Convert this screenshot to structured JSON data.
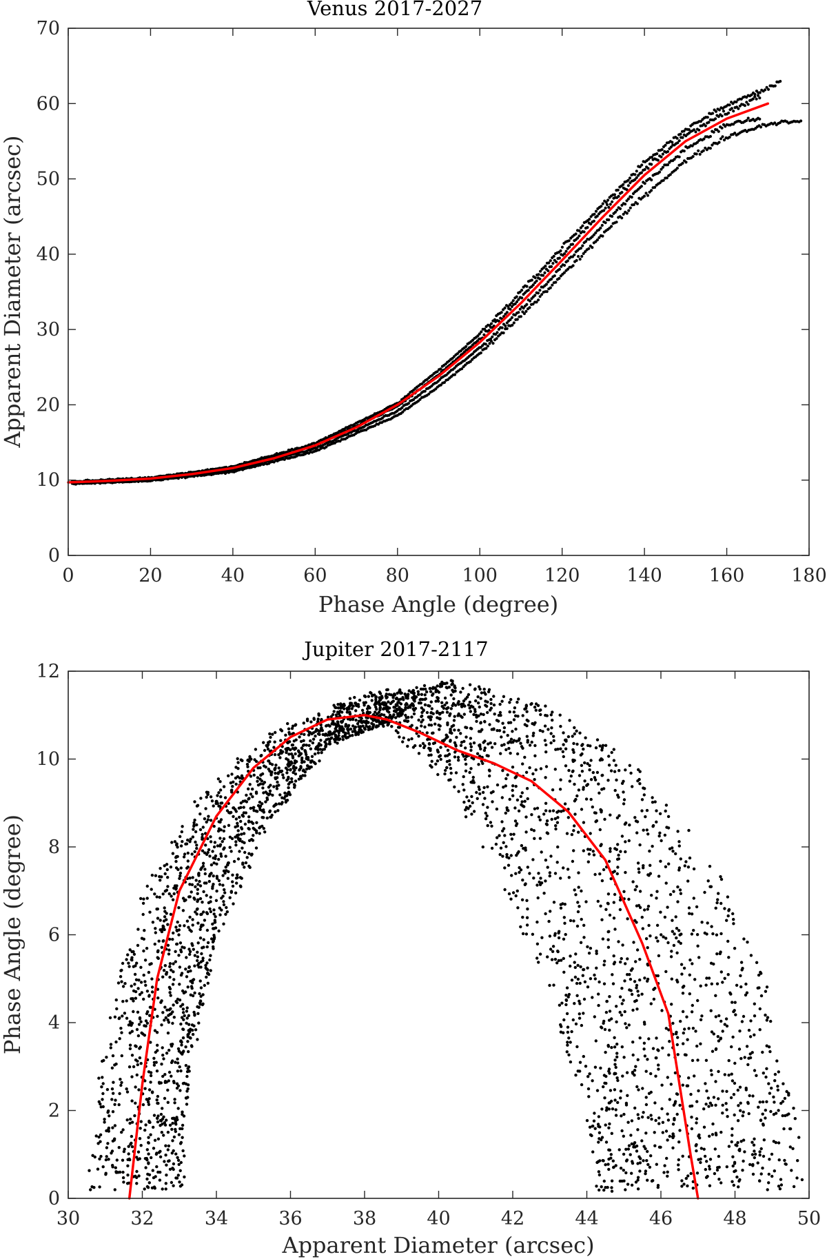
{
  "colors": {
    "points": "#000000",
    "fit": "#ff0000",
    "axes": "#262626"
  },
  "chart_data": [
    {
      "type": "scatter",
      "title": "Venus 2017-2027",
      "xlabel": "Phase Angle (degree)",
      "ylabel": "Apparent Diameter (arcsec)",
      "xlim": [
        0,
        180
      ],
      "ylim": [
        0,
        70
      ],
      "xticks": [
        0,
        20,
        40,
        60,
        80,
        100,
        120,
        140,
        160,
        180
      ],
      "yticks": [
        0,
        10,
        20,
        30,
        40,
        50,
        60,
        70
      ],
      "grid": false,
      "series": [
        {
          "name": "observations",
          "kind": "dense points along curve bands",
          "bands": [
            {
              "x": [
                1,
                20,
                40,
                60,
                80,
                90,
                100,
                110,
                120,
                130,
                140,
                150,
                160,
                168,
                173
              ],
              "y": [
                9.8,
                10.3,
                11.8,
                14.9,
                20.2,
                24.6,
                29.4,
                35.0,
                40.9,
                46.7,
                52.1,
                56.6,
                59.8,
                61.6,
                62.8
              ]
            },
            {
              "x": [
                1,
                20,
                40,
                60,
                80,
                90,
                100,
                110,
                120,
                130,
                140,
                150,
                160,
                168
              ],
              "y": [
                9.7,
                10.2,
                11.6,
                14.6,
                19.8,
                24.0,
                28.8,
                34.2,
                40.0,
                45.8,
                51.2,
                55.8,
                58.9,
                60.9
              ]
            },
            {
              "x": [
                1,
                20,
                40,
                60,
                80,
                90,
                100,
                110,
                120,
                130,
                140,
                150,
                160,
                168
              ],
              "y": [
                9.6,
                10.0,
                11.3,
                14.2,
                19.2,
                23.2,
                27.6,
                32.7,
                38.3,
                44.0,
                49.4,
                54.0,
                57.2,
                58.0
              ]
            },
            {
              "x": [
                1,
                20,
                40,
                60,
                80,
                90,
                100,
                110,
                120,
                130,
                140,
                150,
                160,
                170,
                178
              ],
              "y": [
                9.5,
                9.9,
                11.1,
                13.8,
                18.6,
                22.4,
                26.8,
                31.8,
                37.2,
                42.7,
                47.8,
                52.4,
                55.6,
                57.3,
                57.8
              ]
            }
          ]
        },
        {
          "name": "fit",
          "kind": "line",
          "x": [
            0,
            10,
            20,
            30,
            40,
            50,
            60,
            70,
            80,
            90,
            100,
            110,
            120,
            130,
            140,
            150,
            160,
            170
          ],
          "y": [
            9.7,
            9.9,
            10.2,
            10.8,
            11.6,
            12.9,
            14.6,
            17.0,
            20.0,
            23.8,
            28.3,
            33.5,
            39.2,
            45.0,
            50.5,
            55.0,
            58.0,
            60.0
          ]
        }
      ]
    },
    {
      "type": "scatter",
      "title": "Jupiter 2017-2117",
      "xlabel": "Apparent Diameter (arcsec)",
      "ylabel": "Phase Angle (degree)",
      "xlim": [
        30,
        50
      ],
      "ylim": [
        0,
        12
      ],
      "xticks": [
        30,
        32,
        34,
        36,
        38,
        40,
        42,
        44,
        46,
        48,
        50
      ],
      "yticks": [
        0,
        2,
        4,
        6,
        8,
        10,
        12
      ],
      "grid": false,
      "series": [
        {
          "name": "observations",
          "kind": "dense points filling an arch band",
          "outer_edge": {
            "x": [
              30.5,
              31.0,
              32.0,
              33.5,
              35.5,
              38.0,
              40.5,
              43.0,
              45.5,
              47.5,
              48.8,
              49.5,
              49.9
            ],
            "y": [
              0.2,
              4.0,
              7.0,
              9.2,
              10.6,
              11.5,
              11.8,
              11.2,
              9.8,
              7.6,
              5.0,
              2.5,
              0.2
            ]
          },
          "inner_edge": {
            "x": [
              33.1,
              33.3,
              34.0,
              35.3,
              37.0,
              38.5,
              40.0,
              41.5,
              43.0,
              44.0,
              44.3
            ],
            "y": [
              0.2,
              3.0,
              5.8,
              8.4,
              10.3,
              10.8,
              9.6,
              7.6,
              4.6,
              1.8,
              0.2
            ]
          }
        },
        {
          "name": "fit",
          "kind": "line",
          "x": [
            31.65,
            32.0,
            32.4,
            33.0,
            34.0,
            35.0,
            36.0,
            37.0,
            38.0,
            38.6,
            39.5,
            40.5,
            41.5,
            42.5,
            43.5,
            44.5,
            45.5,
            46.2,
            46.5,
            46.8,
            47.0
          ],
          "y": [
            0.0,
            2.6,
            5.0,
            7.0,
            8.7,
            9.8,
            10.5,
            10.9,
            11.0,
            10.9,
            10.6,
            10.2,
            9.9,
            9.5,
            8.8,
            7.7,
            5.8,
            4.2,
            2.6,
            1.0,
            0.0
          ]
        }
      ]
    }
  ]
}
